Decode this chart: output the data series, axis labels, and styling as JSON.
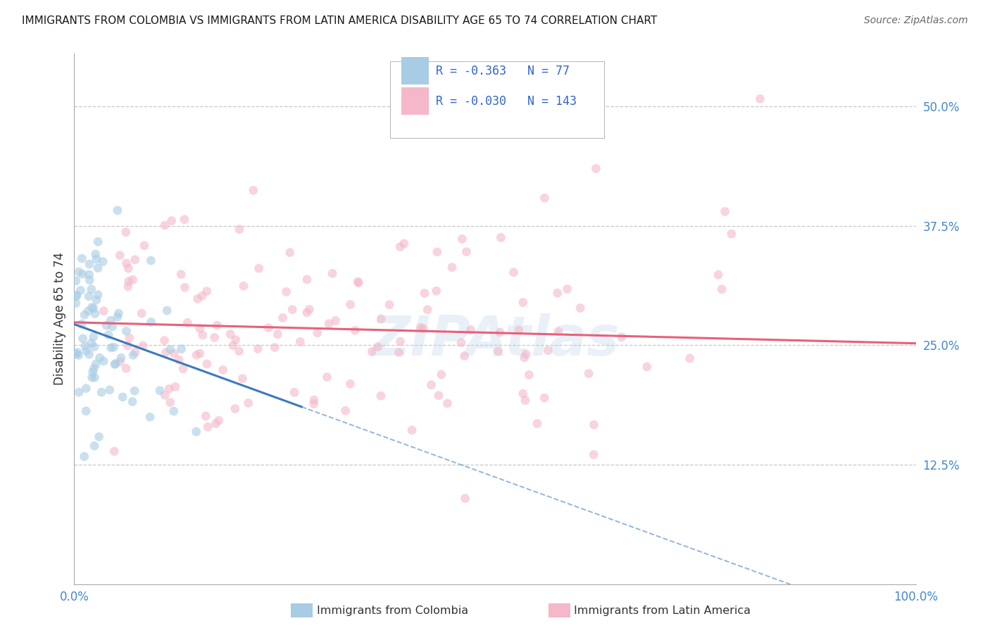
{
  "title": "IMMIGRANTS FROM COLOMBIA VS IMMIGRANTS FROM LATIN AMERICA DISABILITY AGE 65 TO 74 CORRELATION CHART",
  "source": "Source: ZipAtlas.com",
  "ylabel": "Disability Age 65 to 74",
  "xlim": [
    0,
    1.0
  ],
  "ylim": [
    0,
    0.5556
  ],
  "ytick_positions": [
    0.125,
    0.25,
    0.375,
    0.5
  ],
  "ytick_labels": [
    "12.5%",
    "25.0%",
    "37.5%",
    "50.0%"
  ],
  "colombia_R": "-0.363",
  "colombia_N": "77",
  "latam_R": "-0.030",
  "latam_N": "143",
  "colombia_color": "#a8cce4",
  "latam_color": "#f4b8c8",
  "colombia_line_color": "#3a7abf",
  "latam_line_color": "#e8607a",
  "colombia_marker_alpha": 0.6,
  "latam_marker_alpha": 0.6,
  "marker_size": 85,
  "colombia_slope": -0.32,
  "colombia_intercept": 0.272,
  "latam_slope": -0.022,
  "latam_intercept": 0.274,
  "background_color": "#ffffff",
  "grid_color": "#c8c8c8",
  "axis_color": "#aaaaaa",
  "title_color": "#1a1a1a",
  "label_color": "#333333",
  "tick_color": "#4488cc",
  "watermark_text": "ZIPAtlas",
  "watermark_color": "#b8d0e8",
  "watermark_alpha": 0.3,
  "legend_text_color": "#111111",
  "legend_value_color": "#3366cc"
}
